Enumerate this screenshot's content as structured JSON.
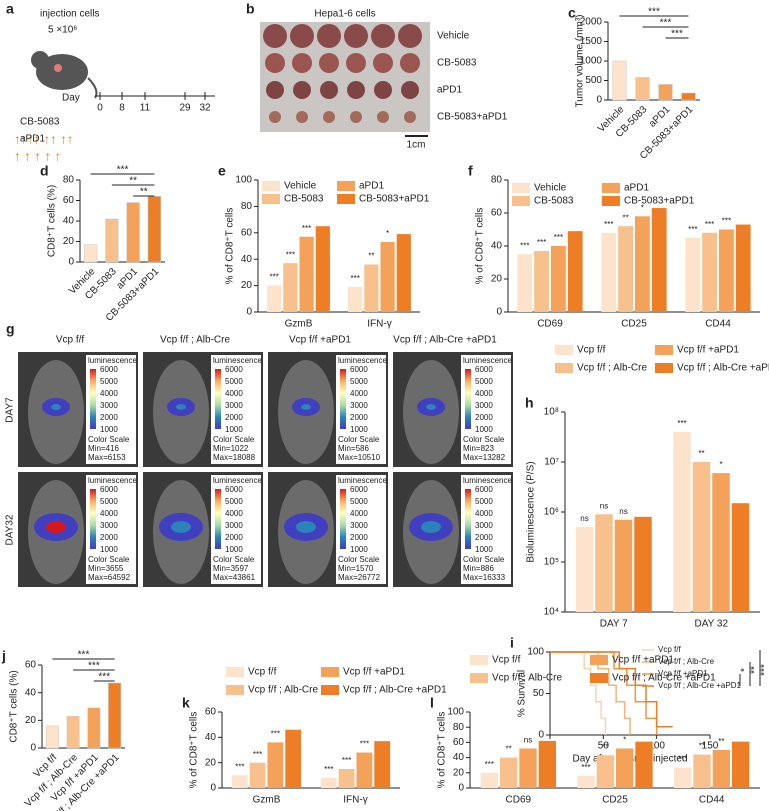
{
  "schematic_a": {
    "label": "a",
    "title": "injection cells",
    "dose": "5 ×10⁶",
    "day_label": "Day",
    "days": [
      0,
      8,
      11,
      29,
      32
    ],
    "drugs": [
      "CB-5083",
      "aPD1"
    ]
  },
  "photo_b": {
    "label": "b",
    "title": "Hepa1-6 cells",
    "rows": [
      "Vehicle",
      "CB-5083",
      "aPD1",
      "CB-5083+aPD1"
    ],
    "scale": "1cm"
  },
  "images_g": {
    "label": "g",
    "columns": [
      "Vcp f/f",
      "Vcp f/f ; Alb-Cre",
      "Vcp f/f +aPD1",
      "Vcp f/f ; Alb-Cre +aPD1"
    ],
    "rows": [
      "DAY7",
      "DAY32"
    ],
    "legend_title": "luminescence",
    "colorbar_ticks": [
      6000,
      5000,
      4000,
      3000,
      2000,
      1000
    ],
    "scale_title": "Color Scale",
    "images": [
      {
        "min": "Min=416",
        "max": "Max=6153"
      },
      {
        "min": "Min=1022",
        "max": "Max=18088"
      },
      {
        "min": "Min=586",
        "max": "Max=10510"
      },
      {
        "min": "Min=823",
        "max": "Max=13282"
      },
      {
        "min": "Min=3655",
        "max": "Max=64592"
      },
      {
        "min": "Min=3597",
        "max": "Max=43861"
      },
      {
        "min": "Min=1570",
        "max": "Max=26772"
      },
      {
        "min": "Min=886",
        "max": "Max=16333"
      }
    ]
  },
  "chart_data": [
    {
      "type": "bar",
      "label": "c",
      "ylabel": "Tumor volume (mm³)",
      "categories": [
        "Vehicle",
        "CB-5083",
        "aPD1",
        "CB-5083+aPD1"
      ],
      "values": [
        1000,
        580,
        400,
        180
      ],
      "colors": [
        "#fde3cb",
        "#f8c08c",
        "#f4a259",
        "#ee7e26"
      ],
      "ylim": [
        0,
        2000
      ],
      "yticks": [
        0,
        500,
        1000,
        1500,
        2000
      ],
      "annotations": [
        "***",
        "***",
        "***"
      ]
    },
    {
      "type": "bar",
      "label": "d",
      "ylabel": "CD8⁺T cells (%)",
      "categories": [
        "Vehicle",
        "CB-5083",
        "aPD1",
        "CB-5083+aPD1"
      ],
      "values": [
        17,
        42,
        58,
        64
      ],
      "colors": [
        "#fde3cb",
        "#f8c08c",
        "#f4a259",
        "#ee7e26"
      ],
      "ylim": [
        0,
        80
      ],
      "yticks": [
        0,
        20,
        40,
        60,
        80
      ],
      "annotations": [
        "***",
        "**",
        "**"
      ]
    },
    {
      "type": "bar",
      "label": "e",
      "ylabel": "% of CD8⁺T cells",
      "categories": [
        "GzmB",
        "IFN-γ"
      ],
      "ylim": [
        0,
        100
      ],
      "yticks": [
        0,
        20,
        40,
        60,
        80,
        100
      ],
      "series": [
        {
          "name": "Vehicle",
          "color": "#fde3cb",
          "values": [
            20,
            19
          ],
          "sig": [
            "***",
            "***"
          ]
        },
        {
          "name": "CB-5083",
          "color": "#f8c08c",
          "values": [
            37,
            36
          ],
          "sig": [
            "***",
            "**"
          ]
        },
        {
          "name": "aPD1",
          "color": "#f4a259",
          "values": [
            57,
            53
          ],
          "sig": [
            "***",
            "*"
          ]
        },
        {
          "name": "CB-5083+aPD1",
          "color": "#ee7e26",
          "values": [
            65,
            59
          ]
        }
      ]
    },
    {
      "type": "bar",
      "label": "f",
      "ylabel": "% of CD8⁺T cells",
      "categories": [
        "CD69",
        "CD25",
        "CD44"
      ],
      "ylim": [
        0,
        80
      ],
      "yticks": [
        0,
        20,
        40,
        60,
        80
      ],
      "series": [
        {
          "name": "Vehicle",
          "color": "#fde3cb",
          "values": [
            35,
            48,
            45
          ],
          "sig": [
            "***",
            "***",
            "***"
          ]
        },
        {
          "name": "CB-5083",
          "color": "#f8c08c",
          "values": [
            37,
            52,
            48
          ],
          "sig": [
            "***",
            "**",
            "***"
          ]
        },
        {
          "name": "aPD1",
          "color": "#f4a259",
          "values": [
            40,
            58,
            50
          ],
          "sig": [
            "***",
            "*",
            "***"
          ]
        },
        {
          "name": "CB-5083+aPD1",
          "color": "#ee7e26",
          "values": [
            49,
            63,
            53
          ]
        }
      ]
    },
    {
      "type": "bar",
      "label": "h",
      "ylabel": "Bioluminescence (P/S)",
      "log": true,
      "categories": [
        "DAY 7",
        "DAY 32"
      ],
      "ylim": [
        10000,
        100000000
      ],
      "yticks": [
        {
          "value": 10000,
          "label": "10⁴"
        },
        {
          "value": 100000,
          "label": "10⁵"
        },
        {
          "value": 1000000,
          "label": "10⁶"
        },
        {
          "value": 10000000,
          "label": "10⁷"
        },
        {
          "value": 100000000,
          "label": "10⁸"
        }
      ],
      "series": [
        {
          "name": "Vcp f/f",
          "color": "#fde3cb",
          "values": [
            500000,
            40000000
          ],
          "sig": [
            "ns",
            "***"
          ]
        },
        {
          "name": "Vcp f/f ; Alb-Cre",
          "color": "#f8c08c",
          "values": [
            900000,
            10000000
          ],
          "sig": [
            "ns",
            "**"
          ]
        },
        {
          "name": "Vcp f/f +aPD1",
          "color": "#f4a259",
          "values": [
            700000,
            6000000
          ],
          "sig": [
            "ns",
            "*"
          ]
        },
        {
          "name": "Vcp f/f ; Alb-Cre +aPD1",
          "color": "#ee7e26",
          "values": [
            800000,
            1500000
          ]
        }
      ]
    },
    {
      "type": "line",
      "label": "i",
      "ylabel": "% Survival",
      "xlabel": "Day after plasmid injected",
      "xlim": [
        0,
        150
      ],
      "xticks": [
        0,
        50,
        100,
        150
      ],
      "ylim": [
        0,
        100
      ],
      "yticks": [
        0,
        50,
        100
      ],
      "annotations": [
        "*",
        "**",
        "***"
      ],
      "series": [
        {
          "name": "Vcp f/f",
          "color": "#fbd3b0",
          "x": [
            0,
            32,
            32,
            38,
            38,
            43,
            43,
            48,
            48,
            52,
            52
          ],
          "values": [
            100,
            100,
            80,
            80,
            60,
            60,
            40,
            40,
            20,
            20,
            0
          ]
        },
        {
          "name": "Vcp f/f ; Alb-Cre",
          "color": "#f6b27a",
          "x": [
            0,
            45,
            45,
            55,
            55,
            62,
            62,
            70,
            70,
            75,
            75
          ],
          "values": [
            100,
            100,
            80,
            80,
            60,
            60,
            40,
            40,
            20,
            20,
            0
          ]
        },
        {
          "name": "Vcp f/f +aPD1",
          "color": "#f29540",
          "x": [
            0,
            60,
            60,
            72,
            72,
            80,
            80,
            90,
            90,
            100,
            100
          ],
          "values": [
            100,
            100,
            80,
            80,
            60,
            60,
            40,
            40,
            20,
            20,
            0
          ]
        },
        {
          "name": "Vcp f/f ; Alb-Cre +aPD1",
          "color": "#ee7e26",
          "x": [
            0,
            65,
            65,
            80,
            80,
            90,
            90,
            100,
            100,
            115
          ],
          "values": [
            100,
            100,
            80,
            80,
            60,
            60,
            40,
            40,
            10,
            10
          ]
        }
      ]
    },
    {
      "type": "bar",
      "label": "j",
      "ylabel": "CD8⁺T cells (%)",
      "categories": [
        "Vcp f/f",
        "Vcp f/f ; Alb-Cre",
        "Vcp f/f +aPD1",
        "Vcp f/f ; Alb-Cre +aPD1"
      ],
      "values": [
        16,
        23,
        29,
        47
      ],
      "colors": [
        "#fde3cb",
        "#f8c08c",
        "#f4a259",
        "#ee7e26"
      ],
      "ylim": [
        0,
        60
      ],
      "yticks": [
        0,
        20,
        40,
        60
      ],
      "annotations": [
        "***",
        "***",
        "***"
      ]
    },
    {
      "type": "bar",
      "label": "k",
      "ylabel": "% of CD8⁺T cells",
      "categories": [
        "GzmB",
        "IFN-γ"
      ],
      "ylim": [
        0,
        60
      ],
      "yticks": [
        0,
        20,
        40,
        60
      ],
      "series": [
        {
          "name": "Vcp f/f",
          "color": "#fde3cb",
          "values": [
            10,
            8
          ],
          "sig": [
            "***",
            "***"
          ]
        },
        {
          "name": "Vcp f/f ; Alb-Cre",
          "color": "#f8c08c",
          "values": [
            20,
            15
          ],
          "sig": [
            "***",
            "***"
          ]
        },
        {
          "name": "Vcp f/f +aPD1",
          "color": "#f4a259",
          "values": [
            36,
            28
          ],
          "sig": [
            "***",
            "***"
          ]
        },
        {
          "name": "Vcp f/f ; Alb-Cre +aPD1",
          "color": "#ee7e26",
          "values": [
            46,
            37
          ]
        }
      ]
    },
    {
      "type": "bar",
      "label": "l",
      "ylabel": "% of CD8⁺T cells",
      "categories": [
        "CD69",
        "CD25",
        "CD44"
      ],
      "ylim": [
        0,
        100
      ],
      "yticks": [
        0,
        20,
        40,
        60,
        80,
        100
      ],
      "series": [
        {
          "name": "Vcp f/f",
          "color": "#fde3cb",
          "values": [
            20,
            16,
            27
          ],
          "sig": [
            "***",
            "***",
            "***"
          ]
        },
        {
          "name": "Vcp f/f ; Alb-Cre",
          "color": "#f8c08c",
          "values": [
            40,
            43,
            44
          ],
          "sig": [
            "**",
            "**",
            "**"
          ]
        },
        {
          "name": "Vcp f/f +aPD1",
          "color": "#f4a259",
          "values": [
            52,
            52,
            50
          ],
          "sig": [
            "ns",
            "*",
            "**"
          ]
        },
        {
          "name": "Vcp f/f ; Alb-Cre +aPD1",
          "color": "#ee7e26",
          "values": [
            62,
            61,
            61
          ]
        }
      ]
    }
  ]
}
